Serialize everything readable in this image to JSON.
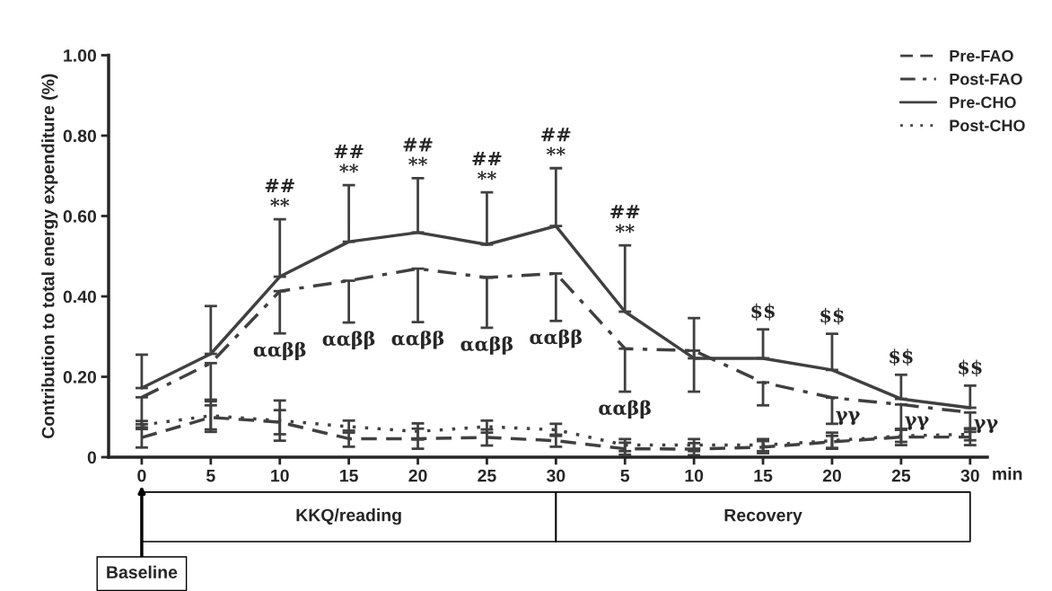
{
  "chart_data": {
    "type": "line",
    "ylabel": "Contribution to total energy expenditure (%)",
    "xlabel": "min",
    "categories": [
      "0",
      "5",
      "10",
      "15",
      "20",
      "25",
      "30",
      "5",
      "10",
      "15",
      "20",
      "25",
      "30"
    ],
    "ylim": [
      0,
      1.0
    ],
    "yticks": [
      {
        "value": 0,
        "label": "0"
      },
      {
        "value": 0.2,
        "label": "0.20"
      },
      {
        "value": 0.4,
        "label": "0.40"
      },
      {
        "value": 0.6,
        "label": "0.60"
      },
      {
        "value": 0.8,
        "label": "0.80"
      },
      {
        "value": 1.0,
        "label": "1.00"
      }
    ],
    "grid": false,
    "legend": "top right",
    "marker": "none",
    "series": [
      {
        "name": "Pre-FAO",
        "color": "#404040",
        "line_style": "dashed",
        "values": [
          0.049,
          0.099,
          0.087,
          0.046,
          0.046,
          0.049,
          0.041,
          0.021,
          0.02,
          0.025,
          0.038,
          0.05,
          0.05
        ],
        "errors": [
          0.025,
          0.03,
          0.03,
          0.02,
          0.025,
          0.02,
          0.015,
          0.015,
          0.015,
          0.015,
          0.015,
          0.02,
          0.02
        ]
      },
      {
        "name": "Post-FAO",
        "color": "#404040",
        "line_style": "dashdot",
        "values": [
          0.149,
          0.234,
          0.413,
          0.439,
          0.469,
          0.447,
          0.457,
          0.27,
          0.265,
          0.186,
          0.148,
          0.131,
          0.111
        ],
        "errors": [
          [
            0.082,
            0.149
          ],
          [
            0.139,
            0.234
          ],
          [
            0.308,
            0.413
          ],
          [
            0.335,
            0.439
          ],
          [
            0.336,
            0.469
          ],
          [
            0.322,
            0.447
          ],
          [
            0.339,
            0.457
          ],
          [
            0.163,
            0.27
          ],
          [
            0.163,
            0.265
          ],
          [
            0.129,
            0.186
          ],
          [
            0.083,
            0.148
          ],
          [
            0.07,
            0.131
          ],
          [
            0.063,
            0.111
          ]
        ]
      },
      {
        "name": "Pre-CHO",
        "color": "#404040",
        "line_style": "solid",
        "values": [
          0.172,
          0.257,
          0.449,
          0.536,
          0.559,
          0.529,
          0.575,
          0.362,
          0.246,
          0.246,
          0.217,
          0.145,
          0.123
        ],
        "errors": [
          [
            0.172,
            0.255
          ],
          [
            0.257,
            0.376
          ],
          [
            0.449,
            0.592
          ],
          [
            0.536,
            0.677
          ],
          [
            0.559,
            0.694
          ],
          [
            0.529,
            0.659
          ],
          [
            0.575,
            0.719
          ],
          [
            0.362,
            0.527
          ],
          [
            0.246,
            0.346
          ],
          [
            0.246,
            0.318
          ],
          [
            0.217,
            0.307
          ],
          [
            0.145,
            0.205
          ],
          [
            0.123,
            0.178
          ]
        ]
      },
      {
        "name": "Post-CHO",
        "color": "#404040",
        "line_style": "dotted",
        "values": [
          0.08,
          0.103,
          0.091,
          0.076,
          0.064,
          0.076,
          0.068,
          0.03,
          0.03,
          0.03,
          0.041,
          0.053,
          0.057
        ],
        "errors": [
          0.01,
          0.04,
          0.05,
          0.015,
          0.02,
          0.015,
          0.015,
          0.015,
          0.015,
          0.015,
          0.02,
          0.015,
          0.015
        ]
      }
    ],
    "annotations": [
      "##",
      "##",
      "##",
      "##",
      "##",
      "##",
      "**",
      "**",
      "**",
      "**",
      "**",
      "**",
      "ααββ",
      "ααββ",
      "ααββ",
      "ααββ",
      "ααββ",
      "ααββ",
      "$$",
      "$$",
      "$$",
      "$$",
      "γγ",
      "γγ",
      "γγ",
      "KKQ/reading",
      "Recovery",
      "Baseline"
    ]
  }
}
